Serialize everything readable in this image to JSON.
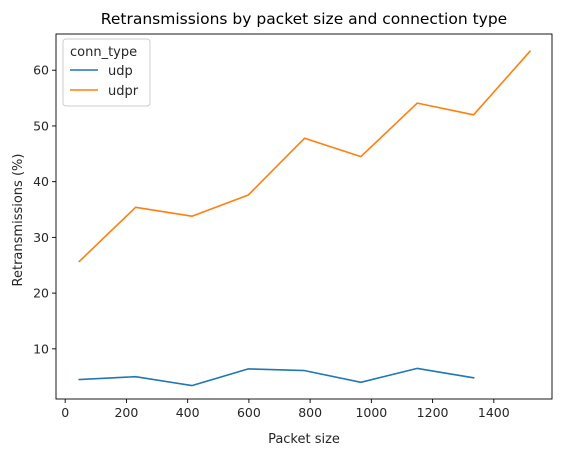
{
  "chart_data": {
    "type": "line",
    "title": "Retransmissions by packet size and connection type",
    "xlabel": "Packet size",
    "ylabel": "Retransmissions (%)",
    "xlim": [
      -30,
      1590
    ],
    "ylim": [
      1,
      66.5
    ],
    "xticks": [
      0,
      200,
      400,
      600,
      800,
      1000,
      1200,
      1400
    ],
    "yticks": [
      10,
      20,
      30,
      40,
      50,
      60
    ],
    "grid": false,
    "legend": {
      "title": "conn_type",
      "placement": "top-left"
    },
    "series": [
      {
        "name": "udp",
        "color": "#1f77b4",
        "x": [
          46,
          230,
          414,
          598,
          782,
          966,
          1150,
          1334
        ],
        "y": [
          4.5,
          5.0,
          3.4,
          6.4,
          6.1,
          4.0,
          6.5,
          4.8
        ]
      },
      {
        "name": "udpr",
        "color": "#ff7f0e",
        "x": [
          46,
          230,
          414,
          598,
          782,
          966,
          1150,
          1334,
          1518
        ],
        "y": [
          25.7,
          35.4,
          33.8,
          37.6,
          47.8,
          44.5,
          54.1,
          52.0,
          63.4
        ]
      }
    ]
  }
}
